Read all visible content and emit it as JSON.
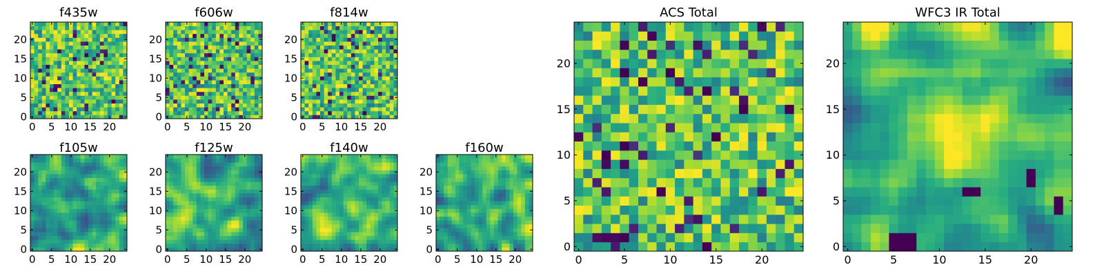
{
  "figure": {
    "background": "#ffffff",
    "colormap": "viridis"
  },
  "chart_data": [
    {
      "id": "f435w",
      "type": "heatmap",
      "title": "f435w",
      "grid_size": [
        25,
        25
      ],
      "xlim": [
        -0.5,
        24.5
      ],
      "ylim": [
        -0.5,
        24.5
      ],
      "xticks": [
        0,
        5,
        10,
        15,
        20
      ],
      "yticks": [
        0,
        5,
        10,
        15,
        20
      ],
      "x_tick_labels": [
        "0",
        "5",
        "10",
        "15",
        "20"
      ],
      "y_tick_labels": [
        "0",
        "5",
        "10",
        "15",
        "20"
      ],
      "texture": "fine",
      "seed": 11,
      "value_range": [
        0,
        1
      ]
    },
    {
      "id": "f606w",
      "type": "heatmap",
      "title": "f606w",
      "grid_size": [
        25,
        25
      ],
      "xlim": [
        -0.5,
        24.5
      ],
      "ylim": [
        -0.5,
        24.5
      ],
      "xticks": [
        0,
        5,
        10,
        15,
        20
      ],
      "yticks": [
        0,
        5,
        10,
        15,
        20
      ],
      "x_tick_labels": [
        "0",
        "5",
        "10",
        "15",
        "20"
      ],
      "y_tick_labels": [
        "0",
        "5",
        "10",
        "15",
        "20"
      ],
      "texture": "fine",
      "seed": 23,
      "value_range": [
        0,
        1
      ]
    },
    {
      "id": "f814w",
      "type": "heatmap",
      "title": "f814w",
      "grid_size": [
        25,
        25
      ],
      "xlim": [
        -0.5,
        24.5
      ],
      "ylim": [
        -0.5,
        24.5
      ],
      "xticks": [
        0,
        5,
        10,
        15,
        20
      ],
      "yticks": [
        0,
        5,
        10,
        15,
        20
      ],
      "x_tick_labels": [
        "0",
        "5",
        "10",
        "15",
        "20"
      ],
      "y_tick_labels": [
        "0",
        "5",
        "10",
        "15",
        "20"
      ],
      "texture": "fine",
      "seed": 37,
      "value_range": [
        0,
        1
      ]
    },
    {
      "id": "f105w",
      "type": "heatmap",
      "title": "f105w",
      "grid_size": [
        25,
        25
      ],
      "xlim": [
        -0.5,
        24.5
      ],
      "ylim": [
        -0.5,
        24.5
      ],
      "xticks": [
        0,
        5,
        10,
        15,
        20
      ],
      "yticks": [
        0,
        5,
        10,
        15,
        20
      ],
      "x_tick_labels": [
        "0",
        "5",
        "10",
        "15",
        "20"
      ],
      "y_tick_labels": [
        "0",
        "5",
        "10",
        "15",
        "20"
      ],
      "texture": "smooth",
      "seed": 41,
      "value_range": [
        0,
        1
      ]
    },
    {
      "id": "f125w",
      "type": "heatmap",
      "title": "f125w",
      "grid_size": [
        25,
        25
      ],
      "xlim": [
        -0.5,
        24.5
      ],
      "ylim": [
        -0.5,
        24.5
      ],
      "xticks": [
        0,
        5,
        10,
        15,
        20
      ],
      "yticks": [
        0,
        5,
        10,
        15,
        20
      ],
      "x_tick_labels": [
        "0",
        "5",
        "10",
        "15",
        "20"
      ],
      "y_tick_labels": [
        "0",
        "5",
        "10",
        "15",
        "20"
      ],
      "texture": "smooth",
      "seed": 53,
      "value_range": [
        0,
        1
      ]
    },
    {
      "id": "f140w",
      "type": "heatmap",
      "title": "f140w",
      "grid_size": [
        25,
        25
      ],
      "xlim": [
        -0.5,
        24.5
      ],
      "ylim": [
        -0.5,
        24.5
      ],
      "xticks": [
        0,
        5,
        10,
        15,
        20
      ],
      "yticks": [
        0,
        5,
        10,
        15,
        20
      ],
      "x_tick_labels": [
        "0",
        "5",
        "10",
        "15",
        "20"
      ],
      "y_tick_labels": [
        "0",
        "5",
        "10",
        "15",
        "20"
      ],
      "texture": "smooth",
      "seed": 67,
      "value_range": [
        0,
        1
      ]
    },
    {
      "id": "f160w",
      "type": "heatmap",
      "title": "f160w",
      "grid_size": [
        25,
        25
      ],
      "xlim": [
        -0.5,
        24.5
      ],
      "ylim": [
        -0.5,
        24.5
      ],
      "xticks": [
        0,
        5,
        10,
        15,
        20
      ],
      "yticks": [
        0,
        5,
        10,
        15,
        20
      ],
      "x_tick_labels": [
        "0",
        "5",
        "10",
        "15",
        "20"
      ],
      "y_tick_labels": [
        "0",
        "5",
        "10",
        "15",
        "20"
      ],
      "texture": "smooth",
      "seed": 79,
      "value_range": [
        0,
        1
      ]
    },
    {
      "id": "acs_total",
      "type": "heatmap",
      "title": "ACS Total",
      "grid_size": [
        25,
        25
      ],
      "xlim": [
        -0.5,
        24.5
      ],
      "ylim": [
        -0.5,
        24.5
      ],
      "xticks": [
        0,
        5,
        10,
        15,
        20
      ],
      "yticks": [
        0,
        5,
        10,
        15,
        20
      ],
      "x_tick_labels": [
        "0",
        "5",
        "10",
        "15",
        "20"
      ],
      "y_tick_labels": [
        "0",
        "5",
        "10",
        "15",
        "20"
      ],
      "texture": "fine",
      "seed": 97,
      "value_range": [
        0,
        1
      ],
      "dark_cells": [
        [
          5,
          19
        ],
        [
          10,
          19
        ],
        [
          14,
          17
        ],
        [
          18,
          15
        ],
        [
          23,
          15
        ],
        [
          3,
          10
        ],
        [
          5,
          11
        ],
        [
          15,
          12
        ],
        [
          9,
          6
        ],
        [
          5,
          1
        ],
        [
          14,
          0
        ]
      ]
    },
    {
      "id": "wfc3_ir_total",
      "type": "heatmap",
      "title": "WFC3 IR Total",
      "grid_size": [
        25,
        25
      ],
      "xlim": [
        -0.5,
        24.5
      ],
      "ylim": [
        -0.5,
        24.5
      ],
      "xticks": [
        0,
        5,
        10,
        15,
        20
      ],
      "yticks": [
        0,
        5,
        10,
        15,
        20
      ],
      "x_tick_labels": [
        "0",
        "5",
        "10",
        "15",
        "20"
      ],
      "y_tick_labels": [
        "0",
        "5",
        "10",
        "15",
        "20"
      ],
      "texture": "smooth",
      "seed": 113,
      "value_range": [
        0,
        1
      ],
      "bright_region": [
        12,
        12
      ],
      "dark_cells": [
        [
          5,
          0
        ],
        [
          6,
          0
        ],
        [
          7,
          0
        ],
        [
          5,
          1
        ],
        [
          6,
          1
        ],
        [
          7,
          1
        ],
        [
          20,
          8
        ],
        [
          20,
          7
        ],
        [
          23,
          5
        ],
        [
          23,
          4
        ],
        [
          13,
          6
        ],
        [
          14,
          6
        ]
      ]
    }
  ]
}
